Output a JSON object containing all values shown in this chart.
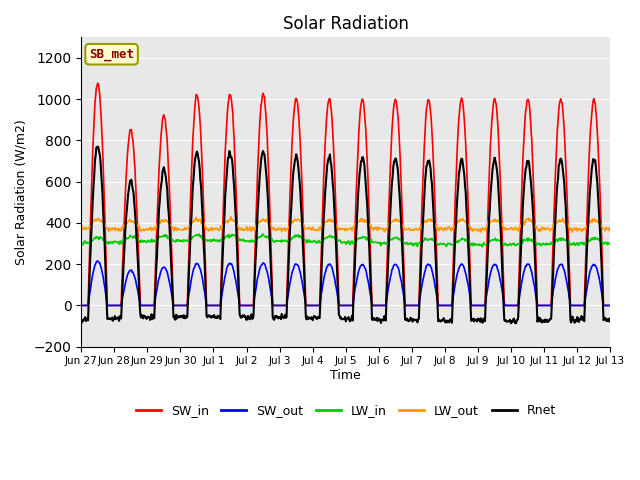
{
  "title": "Solar Radiation",
  "ylabel": "Solar Radiation (W/m2)",
  "xlabel": "Time",
  "ylim": [
    -200,
    1300
  ],
  "yticks": [
    -200,
    0,
    200,
    400,
    600,
    800,
    1000,
    1200
  ],
  "plot_bg_color": "#e8e8e8",
  "legend_label": "SB_met",
  "series": {
    "SW_in": {
      "color": "#ff0000",
      "lw": 1.2
    },
    "SW_out": {
      "color": "#0000ff",
      "lw": 1.2
    },
    "LW_in": {
      "color": "#00cc00",
      "lw": 1.2
    },
    "LW_out": {
      "color": "#ff9900",
      "lw": 1.2
    },
    "Rnet": {
      "color": "#000000",
      "lw": 1.5
    }
  },
  "n_days": 16,
  "dt_hours": 0.5,
  "tick_every_day": true
}
